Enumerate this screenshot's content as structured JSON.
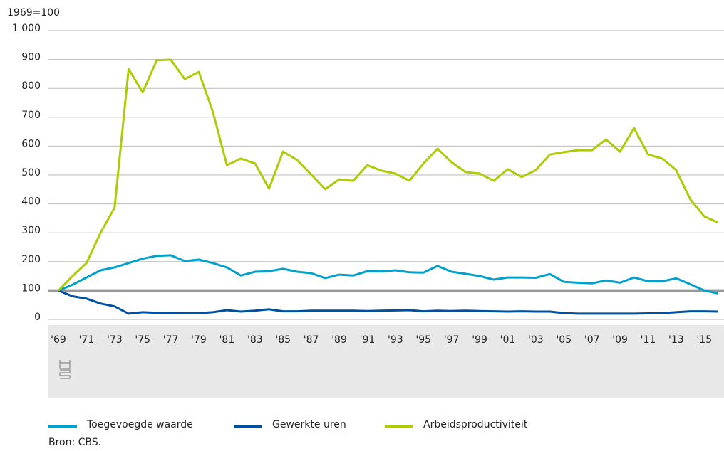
{
  "chart_data": {
    "type": "line",
    "ylabel": "1969=100",
    "source": "Bron: CBS.",
    "categories": [
      "'69",
      null,
      "'71",
      null,
      "'73",
      null,
      "'75",
      null,
      "'77",
      null,
      "'79",
      null,
      "'81",
      null,
      "'83",
      null,
      "'85",
      null,
      "'87",
      null,
      "'89",
      null,
      "'91",
      null,
      "'93",
      null,
      "'95",
      null,
      "'97",
      null,
      "'99",
      null,
      "'01",
      null,
      "'03",
      null,
      "'05",
      null,
      "'07",
      null,
      "'09",
      null,
      "'11",
      null,
      "'13",
      null,
      "'15",
      null
    ],
    "series": [
      {
        "name": "Toegevoegde waarde",
        "color": "#00a1cd",
        "values": [
          100,
          120,
          145,
          170,
          180,
          195,
          210,
          220,
          222,
          202,
          207,
          195,
          180,
          152,
          165,
          167,
          175,
          165,
          160,
          143,
          155,
          152,
          167,
          166,
          170,
          163,
          162,
          185,
          165,
          158,
          150,
          138,
          145,
          145,
          144,
          157,
          130,
          127,
          125,
          135,
          127,
          145,
          132,
          132,
          142,
          122,
          100,
          90
        ]
      },
      {
        "name": "Gewerkte uren",
        "color": "#0050a0",
        "values": [
          100,
          80,
          72,
          55,
          45,
          20,
          25,
          23,
          23,
          22,
          22,
          25,
          32,
          27,
          30,
          35,
          28,
          28,
          30,
          30,
          30,
          30,
          29,
          30,
          31,
          32,
          28,
          30,
          29,
          30,
          29,
          28,
          27,
          28,
          27,
          27,
          22,
          20,
          20,
          20,
          20,
          20,
          21,
          22,
          25,
          28,
          28,
          27
        ]
      },
      {
        "name": "Arbeidsproductiviteit",
        "color": "#afcb05",
        "values": [
          100,
          150,
          195,
          300,
          387,
          867,
          786,
          897,
          899,
          832,
          857,
          719,
          534,
          557,
          540,
          453,
          581,
          552,
          502,
          451,
          485,
          480,
          534,
          515,
          505,
          480,
          540,
          591,
          544,
          510,
          505,
          480,
          520,
          493,
          517,
          571,
          579,
          586,
          586,
          623,
          581,
          662,
          571,
          557,
          517,
          416,
          357,
          335
        ]
      }
    ],
    "ylim": [
      0,
      1000
    ],
    "yticks": [
      0,
      100,
      200,
      300,
      400,
      500,
      600,
      700,
      800,
      900,
      {
        "value": 1000,
        "label": "1 000"
      }
    ],
    "reference_line": 100,
    "grid": true
  }
}
